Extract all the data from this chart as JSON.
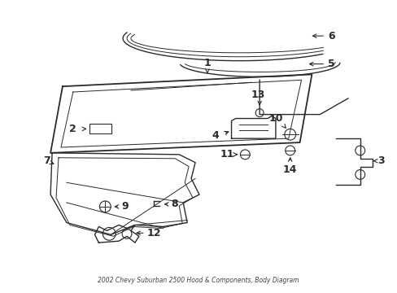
{
  "title": "2002 Chevy Suburban 2500 Hood & Components, Body Diagram",
  "bg_color": "#ffffff",
  "line_color": "#2a2a2a",
  "label_color": "#111111",
  "figsize": [
    4.89,
    3.6
  ],
  "dpi": 100
}
